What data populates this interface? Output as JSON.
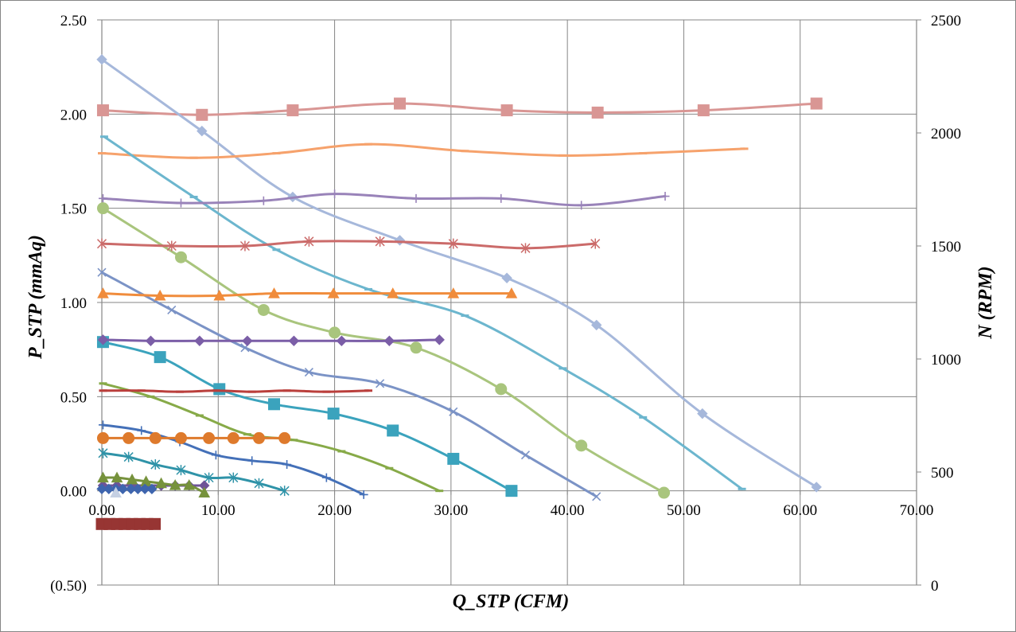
{
  "chart_data": {
    "type": "line",
    "title": "",
    "xlabel": "Q_STP (CFM)",
    "ylabel": "P_STP (mmAq)",
    "y2label": "N (RPM)",
    "xlim": [
      0,
      70
    ],
    "ylim": [
      -0.5,
      2.5
    ],
    "y2lim": [
      0,
      2500
    ],
    "grid": true,
    "legend": "none",
    "x_ticks": {
      "values": [
        0,
        10,
        20,
        30,
        40,
        50,
        60,
        70
      ],
      "labels": [
        "0.00",
        "10.00",
        "20.00",
        "30.00",
        "40.00",
        "50.00",
        "60.00",
        "70.00"
      ]
    },
    "y_ticks": {
      "values": [
        2.5,
        2.0,
        1.5,
        1.0,
        0.5,
        0.0,
        -0.5
      ],
      "labels": [
        "2.50",
        "2.00",
        "1.50",
        "1.00",
        "0.50",
        "0.00",
        "(0.50)"
      ],
      "negative_label_color": "#FF0000"
    },
    "y2_ticks": {
      "values": [
        2500,
        2000,
        1500,
        1000,
        500,
        0
      ],
      "labels": [
        "2500",
        "2000",
        "1500",
        "1000",
        "500",
        "0"
      ]
    },
    "colors": {
      "gridline": "#868686",
      "text": "#000000",
      "border": "#868686"
    },
    "series": [
      {
        "axis": "right",
        "color": "#D99694",
        "marker": "square",
        "x": [
          0.1,
          8.6,
          16.4,
          25.6,
          34.8,
          42.6,
          51.7,
          61.4
        ],
        "y": [
          2100,
          2080,
          2100,
          2130,
          2100,
          2090,
          2100,
          2130
        ]
      },
      {
        "axis": "left",
        "color": "#A6B8DB",
        "marker": "diamond",
        "x": [
          0.0,
          8.6,
          16.4,
          25.6,
          34.8,
          42.5,
          51.6,
          61.4
        ],
        "y": [
          2.29,
          1.91,
          1.56,
          1.33,
          1.13,
          0.88,
          0.41,
          0.02
        ]
      },
      {
        "axis": "right",
        "color": "#F6A26C",
        "marker": "dash",
        "x": [
          0.0,
          7.9,
          15.0,
          22.9,
          31.2,
          39.6,
          46.5,
          55.2
        ],
        "y": [
          1910,
          1890,
          1910,
          1950,
          1920,
          1900,
          1910,
          1930
        ]
      },
      {
        "axis": "left",
        "color": "#6CB6CE",
        "marker": "dash",
        "x": [
          0.2,
          7.9,
          15.0,
          22.9,
          31.2,
          39.6,
          46.5,
          55.0
        ],
        "y": [
          1.88,
          1.56,
          1.28,
          1.07,
          0.93,
          0.65,
          0.39,
          0.01
        ]
      },
      {
        "axis": "right",
        "color": "#9983B9",
        "marker": "plus",
        "x": [
          0.1,
          6.8,
          13.9,
          20.0,
          27.0,
          34.3,
          41.2,
          48.4
        ],
        "y": [
          1710,
          1690,
          1700,
          1730,
          1710,
          1710,
          1680,
          1720
        ]
      },
      {
        "axis": "left",
        "color": "#A9C57D",
        "marker": "circle",
        "x": [
          0.1,
          6.8,
          13.9,
          20.0,
          27.0,
          34.3,
          41.2,
          48.3
        ],
        "y": [
          1.5,
          1.24,
          0.96,
          0.84,
          0.76,
          0.54,
          0.24,
          -0.01
        ]
      },
      {
        "axis": "right",
        "color": "#CB6B6A",
        "marker": "star",
        "x": [
          0.0,
          6.0,
          12.3,
          17.8,
          23.9,
          30.2,
          36.4,
          42.4
        ],
        "y": [
          1510,
          1500,
          1500,
          1520,
          1520,
          1510,
          1490,
          1510
        ]
      },
      {
        "axis": "left",
        "color": "#7B93C6",
        "marker": "x",
        "x": [
          0.0,
          6.0,
          12.3,
          17.8,
          23.9,
          30.2,
          36.4,
          42.5
        ],
        "y": [
          1.16,
          0.96,
          0.76,
          0.63,
          0.57,
          0.42,
          0.19,
          -0.03
        ]
      },
      {
        "axis": "right",
        "color": "#F08C3C",
        "marker": "triangle",
        "x": [
          0.1,
          5.0,
          10.1,
          14.8,
          19.9,
          25.0,
          30.2,
          35.2
        ],
        "y": [
          1290,
          1280,
          1280,
          1290,
          1290,
          1290,
          1290,
          1290
        ]
      },
      {
        "axis": "left",
        "color": "#3BA3BD",
        "marker": "square",
        "x": [
          0.1,
          5.0,
          10.1,
          14.8,
          19.9,
          25.0,
          30.2,
          35.2
        ],
        "y": [
          0.79,
          0.71,
          0.54,
          0.46,
          0.41,
          0.32,
          0.17,
          0.0
        ]
      },
      {
        "axis": "right",
        "color": "#7B5EA7",
        "marker": "diamond",
        "x": [
          0.1,
          4.2,
          8.4,
          12.5,
          16.5,
          20.6,
          24.7,
          29.0
        ],
        "y": [
          1085,
          1080,
          1080,
          1080,
          1080,
          1080,
          1080,
          1085
        ]
      },
      {
        "axis": "left",
        "color": "#87AA48",
        "marker": "dash",
        "x": [
          0.1,
          4.2,
          8.4,
          12.5,
          16.5,
          20.6,
          24.7,
          29.0
        ],
        "y": [
          0.57,
          0.5,
          0.4,
          0.3,
          0.27,
          0.21,
          0.12,
          0.0
        ]
      },
      {
        "axis": "right",
        "color": "#BA3F3C",
        "marker": "dash",
        "x": [
          0.1,
          3.4,
          6.7,
          9.8,
          12.9,
          15.9,
          19.3,
          22.9
        ],
        "y": [
          860,
          860,
          855,
          860,
          855,
          860,
          855,
          860
        ]
      },
      {
        "axis": "left",
        "color": "#4470B8",
        "marker": "plus",
        "x": [
          0.1,
          3.4,
          6.7,
          9.8,
          12.9,
          15.9,
          19.3,
          22.5
        ],
        "y": [
          0.35,
          0.32,
          0.26,
          0.19,
          0.16,
          0.14,
          0.07,
          -0.02
        ]
      },
      {
        "axis": "right",
        "color": "#DE7A2C",
        "marker": "circle",
        "x": [
          0.1,
          2.3,
          4.6,
          6.8,
          9.2,
          11.3,
          13.5,
          15.7
        ],
        "y": [
          650,
          650,
          650,
          650,
          650,
          650,
          650,
          650
        ]
      },
      {
        "axis": "left",
        "color": "#2F93A8",
        "marker": "star",
        "x": [
          0.1,
          2.3,
          4.6,
          6.8,
          9.2,
          11.3,
          13.5,
          15.7
        ],
        "y": [
          0.2,
          0.18,
          0.14,
          0.11,
          0.07,
          0.07,
          0.04,
          0.0
        ]
      },
      {
        "axis": "right",
        "color": "#6E5497",
        "marker": "diamond",
        "x": [
          0.1,
          1.3,
          2.6,
          3.8,
          5.1,
          6.3,
          7.5,
          8.8
        ],
        "y": [
          440,
          440,
          440,
          440,
          440,
          440,
          440,
          440
        ]
      },
      {
        "axis": "left",
        "color": "#76923C",
        "marker": "triangle",
        "x": [
          0.1,
          1.3,
          2.6,
          3.8,
          5.1,
          6.3,
          7.5,
          8.8
        ],
        "y": [
          0.07,
          0.07,
          0.06,
          0.05,
          0.04,
          0.03,
          0.03,
          -0.01
        ]
      },
      {
        "axis": "left",
        "color": "#3E65AE",
        "marker": "diamond",
        "x": [
          0.0,
          0.6,
          1.2,
          1.8,
          2.5,
          3.1,
          3.7,
          4.3
        ],
        "y": [
          0.01,
          0.01,
          0.01,
          0.01,
          0.01,
          0.01,
          0.01,
          0.01
        ]
      },
      {
        "axis": "left",
        "color": "#C5D0E3",
        "marker": "triangle",
        "x": [
          1.2
        ],
        "y": [
          -0.01
        ]
      },
      {
        "axis": "right",
        "color": "#973533",
        "marker": "square",
        "x": [
          0.0,
          0.65,
          1.3,
          1.95,
          2.6,
          3.25,
          3.9,
          4.55
        ],
        "y": [
          270,
          270,
          270,
          270,
          270,
          270,
          270,
          270
        ]
      }
    ]
  }
}
